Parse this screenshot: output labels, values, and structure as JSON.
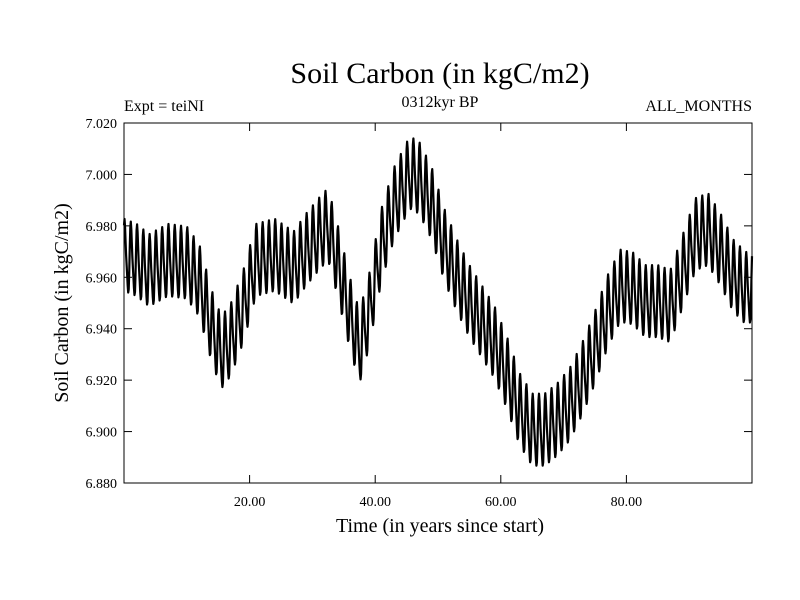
{
  "chart_data": {
    "type": "line",
    "title": "Soil Carbon (in kgC/m2)",
    "left_annotation": "Expt = teiNI",
    "center_annotation": "0312kyr BP",
    "right_annotation": "ALL_MONTHS",
    "xlabel": "Time (in years since start)",
    "ylabel": "Soil Carbon (in kgC/m2)",
    "xlim": [
      0,
      100
    ],
    "ylim": [
      6.88,
      7.02
    ],
    "x_ticks": [
      20,
      40,
      60,
      80
    ],
    "x_tick_labels": [
      "20.00",
      "40.00",
      "60.00",
      "80.00"
    ],
    "y_ticks": [
      6.88,
      6.9,
      6.92,
      6.94,
      6.96,
      6.98,
      7.0,
      7.02
    ],
    "y_tick_labels": [
      "6.880",
      "6.900",
      "6.920",
      "6.940",
      "6.960",
      "6.980",
      "7.000",
      "7.020"
    ],
    "grid": false,
    "series": [
      {
        "name": "Soil Carbon",
        "samples_per_year": 12,
        "seasonal_amplitude": 0.013,
        "baseline_x": [
          0,
          2,
          4,
          7,
          10,
          12,
          14,
          15.5,
          17,
          19,
          21,
          24,
          27,
          29,
          31,
          32.5,
          34,
          36,
          37.5,
          39,
          41,
          43,
          45.5,
          47,
          49,
          51,
          53,
          55,
          57,
          59,
          61,
          63,
          65,
          67,
          69,
          71,
          73,
          75,
          77,
          79,
          81,
          83,
          85,
          87,
          89,
          91,
          93,
          95,
          97,
          99,
          100
        ],
        "baseline_y": [
          6.968,
          6.966,
          6.962,
          6.966,
          6.965,
          6.958,
          6.94,
          6.93,
          6.935,
          6.948,
          6.966,
          6.968,
          6.963,
          6.97,
          6.976,
          6.98,
          6.966,
          6.945,
          6.932,
          6.946,
          6.972,
          6.988,
          7.0,
          6.998,
          6.988,
          6.972,
          6.96,
          6.95,
          6.942,
          6.934,
          6.922,
          6.908,
          6.9,
          6.9,
          6.904,
          6.91,
          6.92,
          6.932,
          6.946,
          6.956,
          6.955,
          6.95,
          6.95,
          6.948,
          6.962,
          6.976,
          6.978,
          6.97,
          6.96,
          6.955,
          6.956
        ]
      }
    ]
  }
}
